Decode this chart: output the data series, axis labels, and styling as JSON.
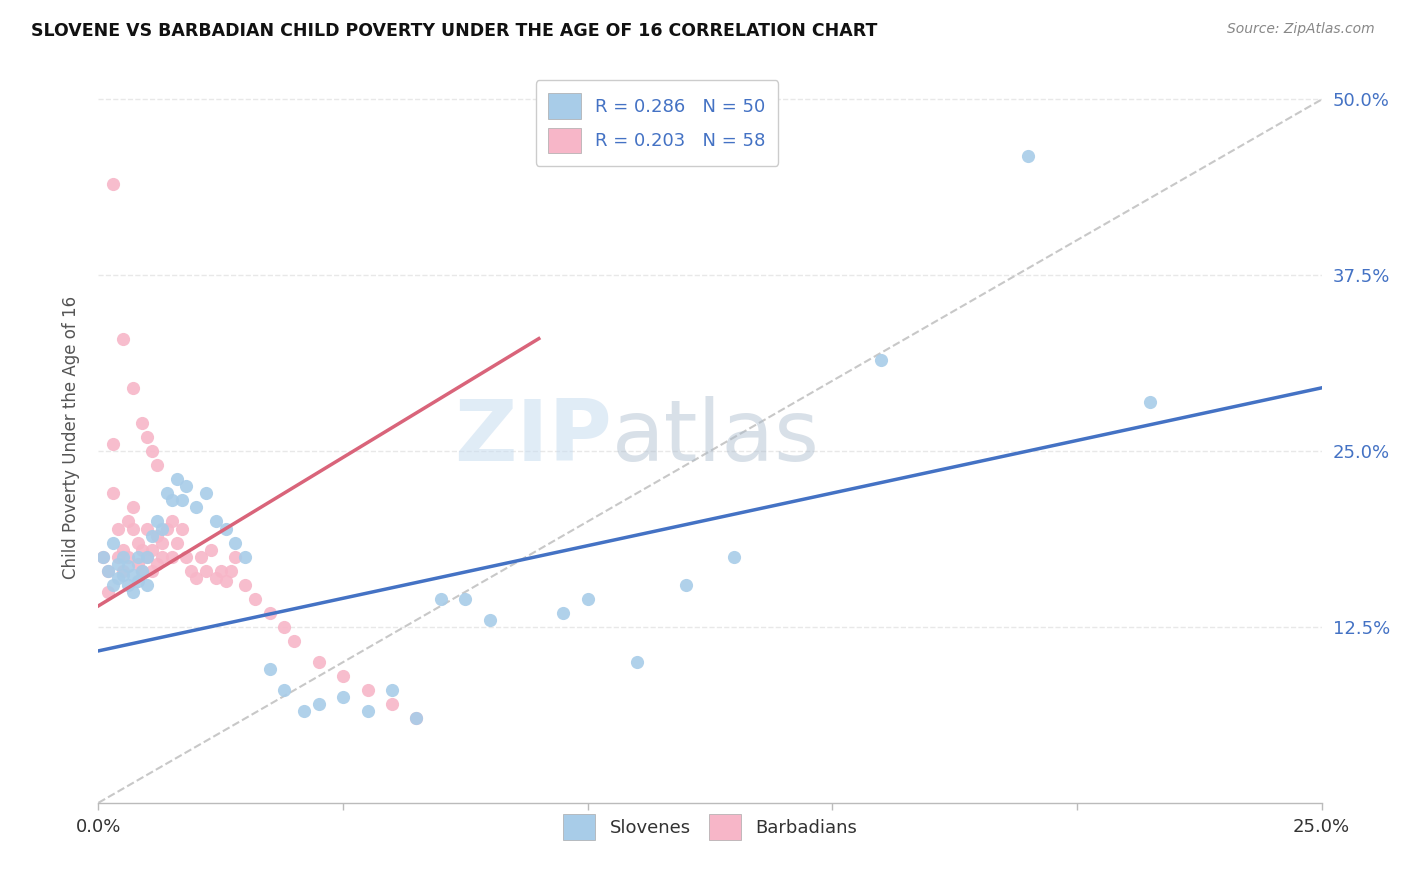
{
  "title": "SLOVENE VS BARBADIAN CHILD POVERTY UNDER THE AGE OF 16 CORRELATION CHART",
  "source": "Source: ZipAtlas.com",
  "ylabel_label": "Child Poverty Under the Age of 16",
  "xlim": [
    0.0,
    0.25
  ],
  "ylim": [
    0.0,
    0.52
  ],
  "slovene_color": "#a8cce8",
  "barbadian_color": "#f7b6c8",
  "slovene_line_color": "#4472c4",
  "barbadian_line_color": "#d9647a",
  "diagonal_color": "#c8c8c8",
  "watermark_zip": "ZIP",
  "watermark_atlas": "atlas",
  "legend_R_slovene": "R = 0.286",
  "legend_N_slovene": "N = 50",
  "legend_R_barbadian": "R = 0.203",
  "legend_N_barbadian": "N = 58",
  "slovene_x": [
    0.001,
    0.002,
    0.003,
    0.003,
    0.004,
    0.004,
    0.005,
    0.005,
    0.006,
    0.006,
    0.007,
    0.007,
    0.008,
    0.008,
    0.009,
    0.01,
    0.01,
    0.011,
    0.012,
    0.013,
    0.014,
    0.015,
    0.016,
    0.017,
    0.018,
    0.02,
    0.022,
    0.024,
    0.026,
    0.028,
    0.03,
    0.035,
    0.038,
    0.042,
    0.045,
    0.05,
    0.055,
    0.06,
    0.065,
    0.07,
    0.075,
    0.08,
    0.095,
    0.1,
    0.11,
    0.12,
    0.13,
    0.16,
    0.19,
    0.215
  ],
  "slovene_y": [
    0.175,
    0.165,
    0.155,
    0.185,
    0.16,
    0.17,
    0.175,
    0.162,
    0.168,
    0.155,
    0.162,
    0.15,
    0.175,
    0.158,
    0.165,
    0.175,
    0.155,
    0.19,
    0.2,
    0.195,
    0.22,
    0.215,
    0.23,
    0.215,
    0.225,
    0.21,
    0.22,
    0.2,
    0.195,
    0.185,
    0.175,
    0.095,
    0.08,
    0.065,
    0.07,
    0.075,
    0.065,
    0.08,
    0.06,
    0.145,
    0.145,
    0.13,
    0.135,
    0.145,
    0.1,
    0.155,
    0.175,
    0.315,
    0.46,
    0.285
  ],
  "barbadian_x": [
    0.001,
    0.002,
    0.002,
    0.003,
    0.003,
    0.004,
    0.004,
    0.005,
    0.005,
    0.006,
    0.006,
    0.007,
    0.007,
    0.008,
    0.008,
    0.009,
    0.009,
    0.01,
    0.01,
    0.011,
    0.011,
    0.012,
    0.012,
    0.013,
    0.013,
    0.014,
    0.015,
    0.015,
    0.016,
    0.017,
    0.018,
    0.019,
    0.02,
    0.021,
    0.022,
    0.023,
    0.024,
    0.025,
    0.026,
    0.027,
    0.028,
    0.03,
    0.032,
    0.035,
    0.038,
    0.04,
    0.045,
    0.05,
    0.055,
    0.06,
    0.065,
    0.003,
    0.005,
    0.007,
    0.009,
    0.01,
    0.011,
    0.012
  ],
  "barbadian_y": [
    0.175,
    0.15,
    0.165,
    0.22,
    0.255,
    0.195,
    0.175,
    0.165,
    0.18,
    0.175,
    0.2,
    0.195,
    0.21,
    0.185,
    0.17,
    0.18,
    0.165,
    0.175,
    0.195,
    0.18,
    0.165,
    0.17,
    0.19,
    0.185,
    0.175,
    0.195,
    0.2,
    0.175,
    0.185,
    0.195,
    0.175,
    0.165,
    0.16,
    0.175,
    0.165,
    0.18,
    0.16,
    0.165,
    0.158,
    0.165,
    0.175,
    0.155,
    0.145,
    0.135,
    0.125,
    0.115,
    0.1,
    0.09,
    0.08,
    0.07,
    0.06,
    0.44,
    0.33,
    0.295,
    0.27,
    0.26,
    0.25,
    0.24
  ],
  "slovene_trend": [
    0.0,
    0.25,
    0.108,
    0.295
  ],
  "barbadian_trend": [
    0.0,
    0.09,
    0.14,
    0.33
  ],
  "diagonal": [
    0.0,
    0.25,
    0.0,
    0.5
  ],
  "right_tick_color": "#4472c4",
  "grid_color": "#e8e8e8",
  "background_color": "#ffffff",
  "yticks": [
    0.125,
    0.25,
    0.375,
    0.5
  ],
  "ytick_labels": [
    "12.5%",
    "25.0%",
    "37.5%",
    "50.0%"
  ]
}
